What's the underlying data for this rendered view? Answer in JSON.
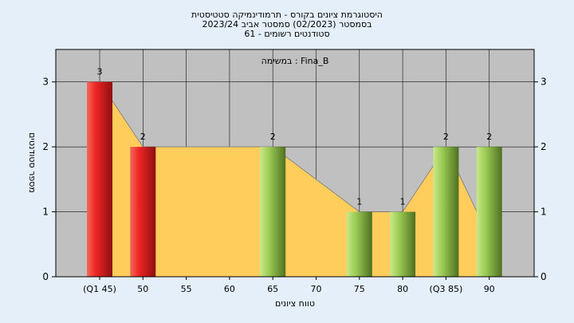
{
  "header": {
    "title_line1": "היסטוגרמת ציונים בקורס - תרמודינמיקה סטטיסטית",
    "title_line2": "בסמסטר  (02/2023)  סמסטר אביב 2023/24",
    "title_line3": "סטודנטים רשומים - 61"
  },
  "chart_data": {
    "type": "bar",
    "subject_label": "במשימה : Fina_B",
    "xlabel": "טווח ציונים",
    "ylabel": "מספר סטודנטים",
    "ylim": [
      0,
      3.5
    ],
    "y_ticks": [
      "0",
      "1",
      "2",
      "3"
    ],
    "categories": [
      "(Q1 45)",
      "50",
      "55",
      "60",
      "65",
      "70",
      "75",
      "80",
      "(Q3 85)",
      "90"
    ],
    "values": [
      3,
      2,
      0,
      0,
      2,
      0,
      1,
      1,
      2,
      2
    ],
    "value_labels": [
      "3",
      "2",
      "",
      "",
      "2",
      "",
      "1",
      "1",
      "2",
      "2"
    ],
    "bar_colors": [
      "red",
      "red",
      "",
      "",
      "green",
      "",
      "green",
      "green",
      "green",
      "green"
    ],
    "area_values": [
      3,
      2,
      2,
      2,
      2,
      1.5,
      1,
      1,
      2,
      0.6
    ],
    "grid": true,
    "colors": {
      "plot_bg": "#c0c0c0",
      "area": "#ffcd5c",
      "red_bar": "#e8262a",
      "green_bar": "#8fbf45",
      "frame": "#000000"
    }
  }
}
